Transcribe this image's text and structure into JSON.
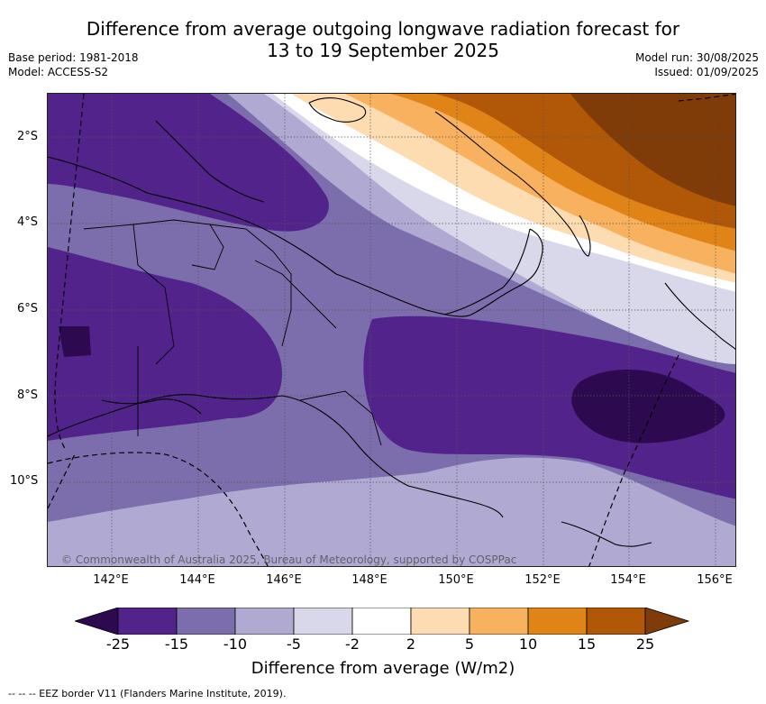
{
  "title_line1": "Difference from average outgoing longwave radiation forecast for",
  "title_line2": "13 to 19 September 2025",
  "base_period": "Base period: 1981-2018",
  "model": "Model: ACCESS-S2",
  "model_run": "Model run: 30/08/2025",
  "issued": "Issued: 01/09/2025",
  "lat_labels": [
    "2°S",
    "4°S",
    "6°S",
    "8°S",
    "10°S"
  ],
  "lon_labels": [
    "142°E",
    "144°E",
    "146°E",
    "148°E",
    "150°E",
    "152°E",
    "154°E",
    "156°E"
  ],
  "copyright": "© Commonwealth of Australia 2025, Bureau of Meteorology, supported by COSPPac",
  "colorbar": {
    "ticks": [
      "-25",
      "-15",
      "-10",
      "-5",
      "-2",
      "2",
      "5",
      "10",
      "15",
      "25"
    ],
    "label": "Difference from average (W/m2)",
    "colors": [
      "#2d0a4f",
      "#52238a",
      "#7c6eac",
      "#b0aad3",
      "#d9d8ea",
      "#ffffff",
      "#fddcb1",
      "#f8b25f",
      "#e18417",
      "#b15808",
      "#7f3b08"
    ]
  },
  "footnote": "--  --  -- EEZ border V11 (Flanders Marine Institute, 2019)."
}
